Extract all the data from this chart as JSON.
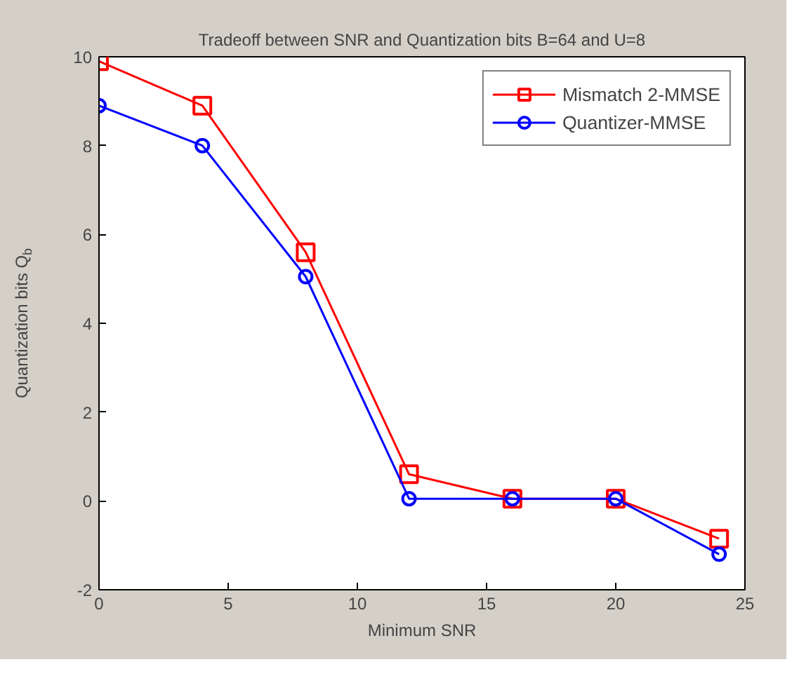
{
  "chart_data": {
    "type": "line",
    "title": "Tradeoff between SNR and Quantization bits B=64 and U=8",
    "xlabel": "Minimum SNR",
    "ylabel": "Quantization bits Q$_{b}$",
    "x": [
      0,
      4,
      8,
      12,
      16,
      20,
      24
    ],
    "series": [
      {
        "name": "Mismatch 2-MMSE",
        "color": "#ff0000",
        "marker": "square",
        "values": [
          9.9,
          8.9,
          5.6,
          0.6,
          0.05,
          0.05,
          -0.85
        ]
      },
      {
        "name": "Quantizer-MMSE",
        "color": "#0000ff",
        "marker": "circle",
        "values": [
          8.9,
          8.0,
          5.05,
          0.05,
          0.05,
          0.05,
          -1.2
        ]
      }
    ],
    "xlim": [
      0,
      25
    ],
    "xticks": [
      0,
      5,
      10,
      15,
      20,
      25
    ],
    "ylim": [
      -2,
      10
    ],
    "yticks": [
      -2,
      0,
      2,
      4,
      6,
      8,
      10
    ],
    "grid": false,
    "legend": "top right",
    "line_style": "solid"
  }
}
